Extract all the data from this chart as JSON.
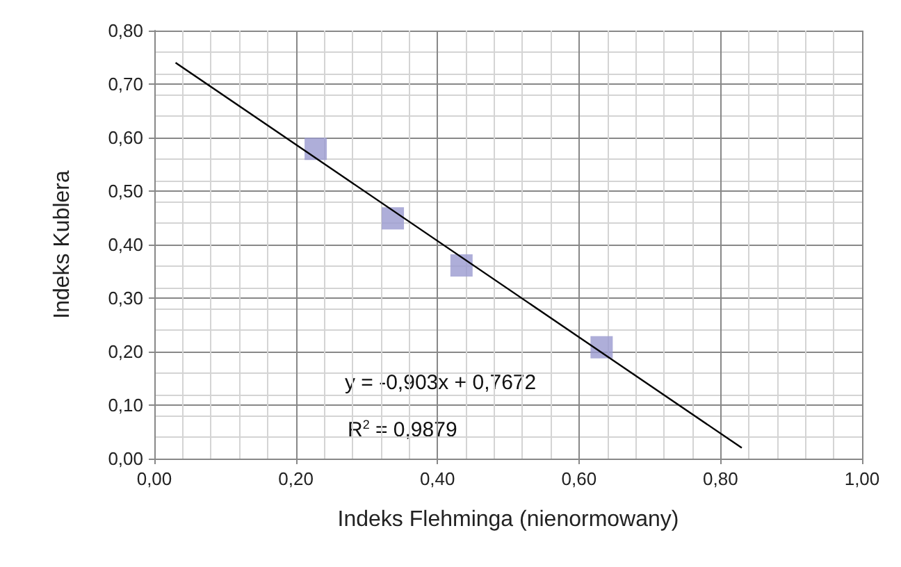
{
  "chart_data": {
    "type": "scatter",
    "xlabel": "Indeks Flehminga (nienormowany)",
    "ylabel": "Indeks Kublera",
    "series": [
      {
        "color": "#9a9ad0",
        "marker": "square",
        "x": [
          0.228,
          0.337,
          0.434,
          0.632
        ],
        "values": [
          0.579,
          0.449,
          0.361,
          0.208
        ]
      },
      {
        "type": "line",
        "color": "#000000",
        "marker": "none",
        "x": [
          0.03,
          0.83
        ],
        "values": [
          0.74,
          0.02
        ]
      }
    ],
    "xlim": [
      0,
      1
    ],
    "ylim": [
      0,
      0.8
    ],
    "xticks": [
      {
        "value": 0,
        "label": "0,00"
      },
      {
        "value": 0.2,
        "label": "0,20"
      },
      {
        "value": 0.4,
        "label": "0,40"
      },
      {
        "value": 0.6,
        "label": "0,60"
      },
      {
        "value": 0.8,
        "label": "0,80"
      },
      {
        "value": 1,
        "label": "1,00"
      }
    ],
    "yticks": [
      {
        "value": 0,
        "label": "0,00"
      },
      {
        "value": 0.1,
        "label": "0,10"
      },
      {
        "value": 0.2,
        "label": "0,20"
      },
      {
        "value": 0.3,
        "label": "0,30"
      },
      {
        "value": 0.4,
        "label": "0,40"
      },
      {
        "value": 0.5,
        "label": "0,50"
      },
      {
        "value": 0.6,
        "label": "0,60"
      },
      {
        "value": 0.7,
        "label": "0,70"
      },
      {
        "value": 0.8,
        "label": "0,80"
      }
    ],
    "grid": true,
    "annotations": [
      "y = -0,903x + 0,7672",
      "R$^{2}$ = 0,9879"
    ]
  }
}
